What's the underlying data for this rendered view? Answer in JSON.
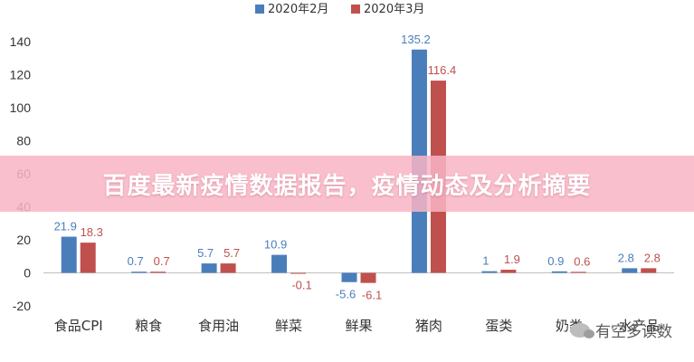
{
  "chart_data": {
    "type": "bar",
    "categories": [
      "食品CPI",
      "粮食",
      "食用油",
      "鲜菜",
      "鲜果",
      "猪肉",
      "蛋类",
      "奶类",
      "水产品"
    ],
    "series": [
      {
        "name": "2020年2月",
        "color": "#4a7ebb",
        "values": [
          21.9,
          0.7,
          5.7,
          10.9,
          -5.6,
          135.2,
          1.0,
          0.9,
          2.8
        ]
      },
      {
        "name": "2020年3月",
        "color": "#c0504d",
        "values": [
          18.3,
          0.7,
          5.7,
          -0.1,
          -6.1,
          116.4,
          1.9,
          0.6,
          2.8
        ]
      }
    ],
    "ylim": [
      -20,
      140
    ],
    "yticks": [
      -20,
      0,
      20,
      40,
      60,
      80,
      100,
      120,
      140
    ],
    "grid": false,
    "legend": "top-center"
  },
  "banner": {
    "title": "百度最新疫情数据报告，疫情动态及分析摘要"
  },
  "watermark": {
    "text": "有空多读数"
  }
}
